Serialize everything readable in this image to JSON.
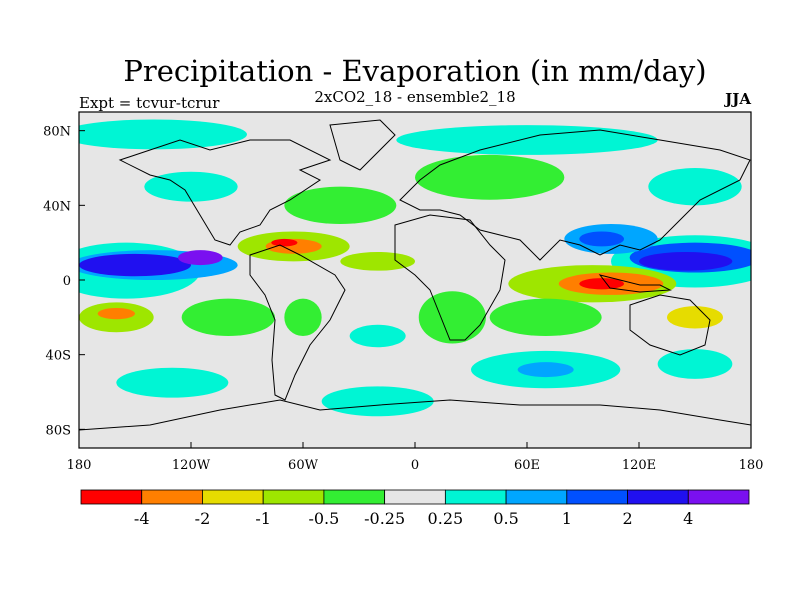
{
  "title": "Precipitation - Evaporation (in mm/day)",
  "subtitle": "2xCO2_18 - ensemble2_18",
  "left_label": "Expt = tcvur-tcrur",
  "right_label": "JJA",
  "colors": {
    "bins": [
      "#ff0000",
      "#ff7f00",
      "#e6dc00",
      "#9ee600",
      "#33ee33",
      "#e6e6e6",
      "#00f5d4",
      "#00a6ff",
      "#0050ff",
      "#2010f0",
      "#7a10f0"
    ],
    "coast": "#000000"
  },
  "map": {
    "lat_ticks": [
      {
        "value": 80,
        "label": "80N"
      },
      {
        "value": 40,
        "label": "40N"
      },
      {
        "value": 0,
        "label": "0"
      },
      {
        "value": -40,
        "label": "40S"
      },
      {
        "value": -80,
        "label": "80S"
      }
    ],
    "lon_ticks": [
      {
        "value": -180,
        "label": "180"
      },
      {
        "value": -120,
        "label": "120W"
      },
      {
        "value": -60,
        "label": "60W"
      },
      {
        "value": 0,
        "label": "0"
      },
      {
        "value": 60,
        "label": "60E"
      },
      {
        "value": 120,
        "label": "120E"
      },
      {
        "value": 180,
        "label": "180"
      }
    ],
    "lon_range": [
      -180,
      180
    ],
    "lat_range": [
      -90,
      90
    ],
    "regions": [
      {
        "bin": 6,
        "cx": -155,
        "cy": 5,
        "rx": 40,
        "ry": 15
      },
      {
        "bin": 7,
        "cx": -140,
        "cy": 8,
        "rx": 45,
        "ry": 8
      },
      {
        "bin": 9,
        "cx": -150,
        "cy": 8,
        "rx": 30,
        "ry": 6
      },
      {
        "bin": 10,
        "cx": -115,
        "cy": 12,
        "rx": 12,
        "ry": 4
      },
      {
        "bin": 6,
        "cx": 150,
        "cy": 10,
        "rx": 45,
        "ry": 14
      },
      {
        "bin": 8,
        "cx": 150,
        "cy": 12,
        "rx": 35,
        "ry": 8
      },
      {
        "bin": 9,
        "cx": 145,
        "cy": 10,
        "rx": 25,
        "ry": 5
      },
      {
        "bin": 7,
        "cx": 105,
        "cy": 22,
        "rx": 25,
        "ry": 8
      },
      {
        "bin": 8,
        "cx": 100,
        "cy": 22,
        "rx": 12,
        "ry": 4
      },
      {
        "bin": 3,
        "cx": 95,
        "cy": -2,
        "rx": 45,
        "ry": 10
      },
      {
        "bin": 1,
        "cx": 105,
        "cy": -2,
        "rx": 28,
        "ry": 6
      },
      {
        "bin": 0,
        "cx": 100,
        "cy": -2,
        "rx": 12,
        "ry": 3
      },
      {
        "bin": 3,
        "cx": -65,
        "cy": 18,
        "rx": 30,
        "ry": 8
      },
      {
        "bin": 1,
        "cx": -65,
        "cy": 18,
        "rx": 15,
        "ry": 4
      },
      {
        "bin": 0,
        "cx": -70,
        "cy": 20,
        "rx": 7,
        "ry": 2
      },
      {
        "bin": 3,
        "cx": -160,
        "cy": -20,
        "rx": 20,
        "ry": 8
      },
      {
        "bin": 1,
        "cx": -160,
        "cy": -18,
        "rx": 10,
        "ry": 3
      },
      {
        "bin": 2,
        "cx": 150,
        "cy": -20,
        "rx": 15,
        "ry": 6
      },
      {
        "bin": 4,
        "cx": -40,
        "cy": 40,
        "rx": 30,
        "ry": 10
      },
      {
        "bin": 4,
        "cx": 40,
        "cy": 55,
        "rx": 40,
        "ry": 12
      },
      {
        "bin": 4,
        "cx": 20,
        "cy": -20,
        "rx": 18,
        "ry": 14
      },
      {
        "bin": 3,
        "cx": -20,
        "cy": 10,
        "rx": 20,
        "ry": 5
      },
      {
        "bin": 4,
        "cx": -60,
        "cy": -20,
        "rx": 10,
        "ry": 10
      },
      {
        "bin": 4,
        "cx": 70,
        "cy": -20,
        "rx": 30,
        "ry": 10
      },
      {
        "bin": 4,
        "cx": -100,
        "cy": -20,
        "rx": 25,
        "ry": 10
      },
      {
        "bin": 6,
        "cx": -140,
        "cy": 78,
        "rx": 50,
        "ry": 8
      },
      {
        "bin": 6,
        "cx": 60,
        "cy": 75,
        "rx": 70,
        "ry": 8
      },
      {
        "bin": 6,
        "cx": -120,
        "cy": 50,
        "rx": 25,
        "ry": 8
      },
      {
        "bin": 6,
        "cx": 150,
        "cy": 50,
        "rx": 25,
        "ry": 10
      },
      {
        "bin": 6,
        "cx": -20,
        "cy": -65,
        "rx": 30,
        "ry": 8
      },
      {
        "bin": 6,
        "cx": 70,
        "cy": -48,
        "rx": 40,
        "ry": 10
      },
      {
        "bin": 7,
        "cx": 70,
        "cy": -48,
        "rx": 15,
        "ry": 4
      },
      {
        "bin": 6,
        "cx": -130,
        "cy": -55,
        "rx": 30,
        "ry": 8
      },
      {
        "bin": 6,
        "cx": 150,
        "cy": -45,
        "rx": 20,
        "ry": 8
      },
      {
        "bin": 6,
        "cx": -20,
        "cy": -30,
        "rx": 15,
        "ry": 6
      }
    ]
  },
  "legend": {
    "labels": [
      "-4",
      "-2",
      "-1",
      "-0.5",
      "-0.25",
      "0.25",
      "0.5",
      "1",
      "2",
      "4"
    ]
  }
}
